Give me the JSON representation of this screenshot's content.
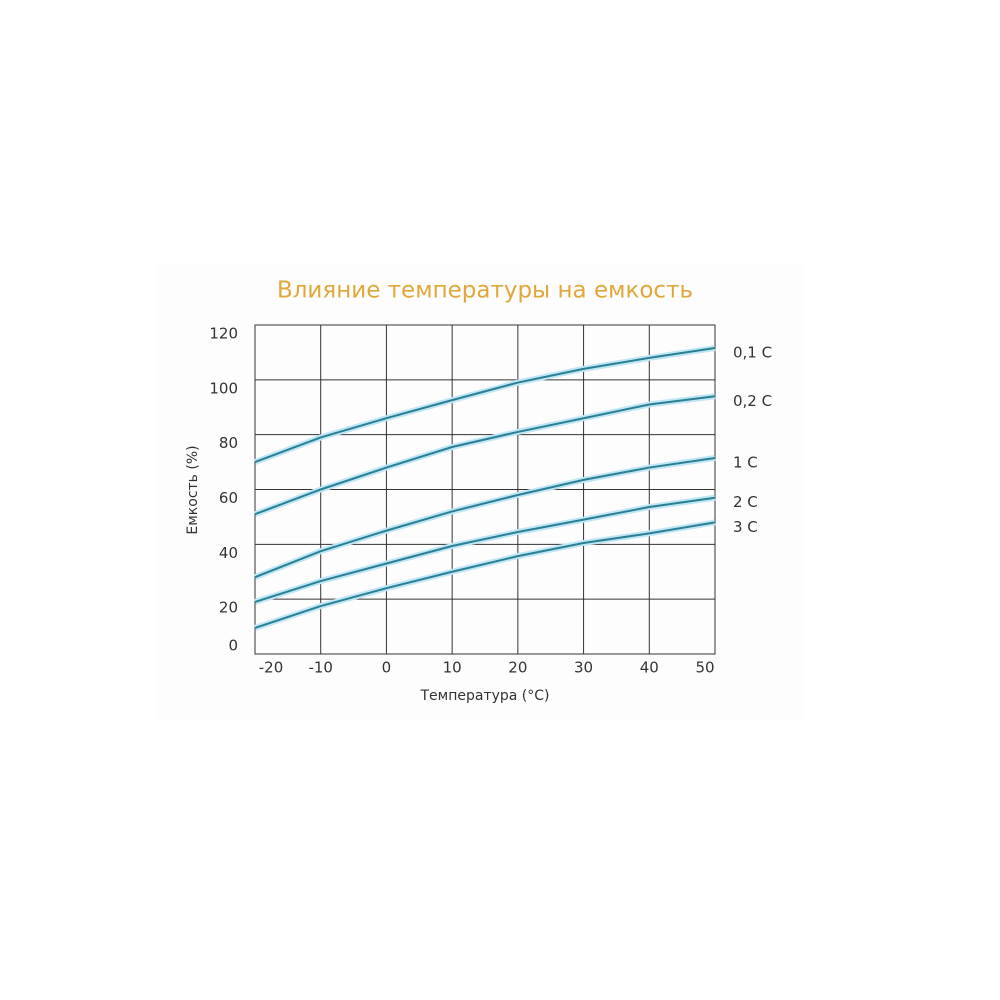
{
  "chart_data": {
    "type": "line",
    "title": "Влияние температуры на емкость",
    "x_label": "Температура (°C)",
    "y_label": "Емкость (%)",
    "x": [
      -20,
      -10,
      0,
      10,
      20,
      30,
      40,
      50
    ],
    "xlim": [
      -20,
      50
    ],
    "xticks": [
      -20,
      -10,
      0,
      10,
      20,
      30,
      40,
      50
    ],
    "ylim": [
      0,
      120
    ],
    "yticks": [
      0,
      20,
      40,
      60,
      80,
      100,
      120
    ],
    "grid": true,
    "series": [
      {
        "name": "0,1 C",
        "color": "#2a7f95",
        "values": [
          70,
          79,
          86,
          92.6,
          99,
          104,
          108,
          111.6
        ]
      },
      {
        "name": "0,2 C",
        "color": "#2a7f95",
        "values": [
          51,
          60,
          68,
          75.5,
          81,
          86,
          91,
          94
        ]
      },
      {
        "name": "1 C",
        "color": "#2a7f95",
        "values": [
          28,
          37.5,
          45,
          52,
          58,
          63.5,
          68,
          71.5
        ]
      },
      {
        "name": "2 C",
        "color": "#2a7f95",
        "values": [
          19,
          26.6,
          33,
          39.4,
          44.5,
          49,
          53.6,
          57
        ]
      },
      {
        "name": "3 C",
        "color": "#2a7f95",
        "values": [
          9.5,
          17.5,
          24,
          30,
          35.7,
          40.5,
          44,
          48
        ]
      }
    ]
  }
}
